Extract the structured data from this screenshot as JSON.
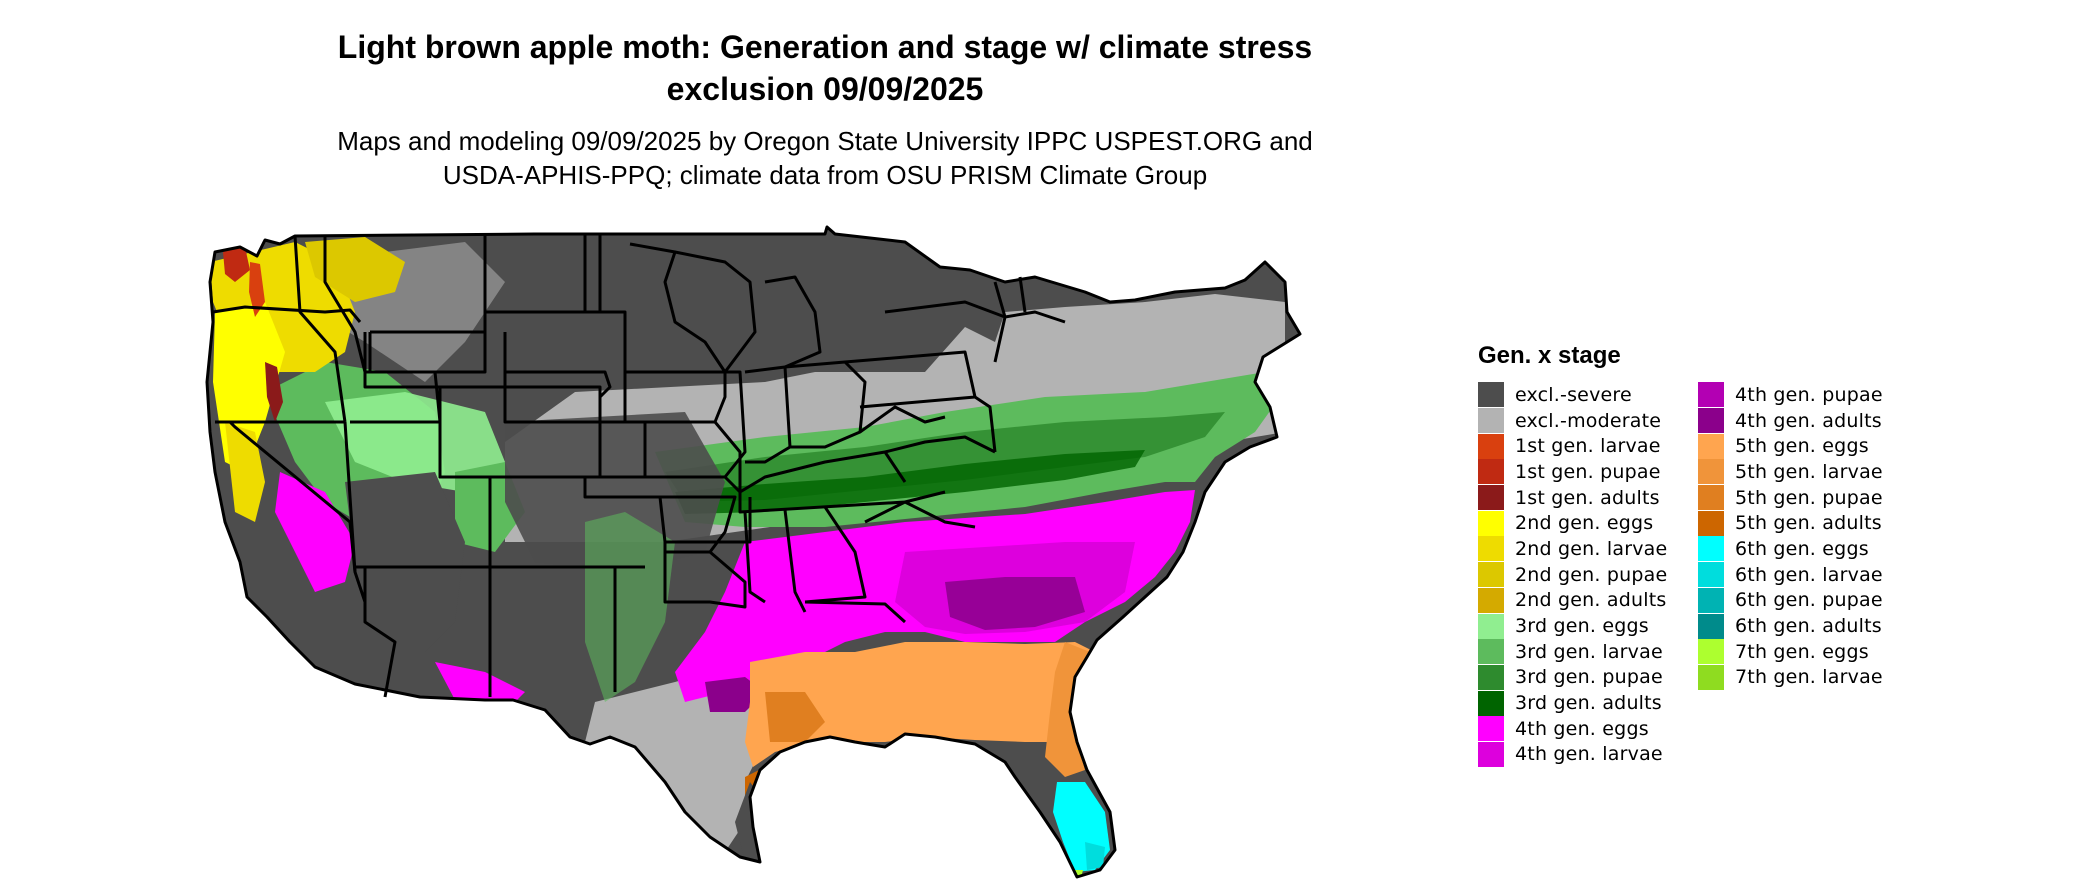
{
  "title_line1": "Light brown apple moth: Generation and stage w/ climate stress",
  "title_line2": "exclusion 09/09/2025",
  "subtitle_line1": "Maps and modeling 09/09/2025 by Oregon State University IPPC USPEST.ORG and",
  "subtitle_line2": "USDA-APHIS-PPQ; climate data from OSU PRISM Climate Group",
  "legend": {
    "title": "Gen. x stage",
    "items": [
      {
        "label": "excl.-severe",
        "color": "#4d4d4d"
      },
      {
        "label": "excl.-moderate",
        "color": "#b3b3b3"
      },
      {
        "label": "1st gen. larvae",
        "color": "#d9400f"
      },
      {
        "label": "1st gen. pupae",
        "color": "#c02a12"
      },
      {
        "label": "1st gen. adults",
        "color": "#8b1a1a"
      },
      {
        "label": "2nd gen. eggs",
        "color": "#ffff00"
      },
      {
        "label": "2nd gen. larvae",
        "color": "#eedc00"
      },
      {
        "label": "2nd gen. pupae",
        "color": "#dcc800"
      },
      {
        "label": "2nd gen. adults",
        "color": "#d4aa00"
      },
      {
        "label": "3rd gen. eggs",
        "color": "#90ee90"
      },
      {
        "label": "3rd gen. larvae",
        "color": "#5dbb5d"
      },
      {
        "label": "3rd gen. pupae",
        "color": "#2e8b2e"
      },
      {
        "label": "3rd gen. adults",
        "color": "#006400"
      },
      {
        "label": "4th gen. eggs",
        "color": "#ff00ff"
      },
      {
        "label": "4th gen. larvae",
        "color": "#dd00dd"
      },
      {
        "label": "4th gen. pupae",
        "color": "#b300b3"
      },
      {
        "label": "4th gen. adults",
        "color": "#8b008b"
      },
      {
        "label": "5th gen. eggs",
        "color": "#ffa54f"
      },
      {
        "label": "5th gen. larvae",
        "color": "#f0943a"
      },
      {
        "label": "5th gen. pupae",
        "color": "#e07f20"
      },
      {
        "label": "5th gen. adults",
        "color": "#cd6600"
      },
      {
        "label": "6th gen. eggs",
        "color": "#00ffff"
      },
      {
        "label": "6th gen. larvae",
        "color": "#00dddd"
      },
      {
        "label": "6th gen. pupae",
        "color": "#00b3b3"
      },
      {
        "label": "6th gen. adults",
        "color": "#008b8b"
      },
      {
        "label": "7th gen. eggs",
        "color": "#adff2f"
      },
      {
        "label": "7th gen. larvae",
        "color": "#8fdc20"
      }
    ]
  }
}
